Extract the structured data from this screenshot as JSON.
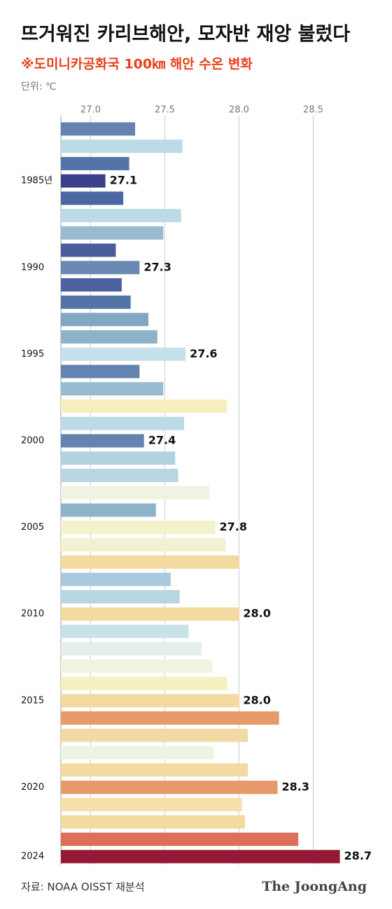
{
  "chart_data": {
    "type": "barh",
    "title": "뜨거워진 카리브해안, 모자반 재앙 불렀다",
    "subtitle": "※도미니카공화국 100㎞ 해안 수온 변화",
    "unit_label": "단위: ℃",
    "source": "자료: NOAA OISST 재분석",
    "brand": "The JoongAng",
    "categories": [
      null,
      null,
      null,
      "1985년",
      null,
      null,
      null,
      null,
      "1990",
      null,
      null,
      null,
      null,
      "1995",
      null,
      null,
      null,
      null,
      "2000",
      null,
      null,
      null,
      null,
      "2005",
      null,
      null,
      null,
      null,
      "2010",
      null,
      null,
      null,
      null,
      "2015",
      null,
      null,
      null,
      null,
      "2020",
      null,
      null,
      null,
      "2024"
    ],
    "values": [
      27.3,
      27.62,
      27.26,
      27.1,
      27.22,
      27.61,
      27.49,
      27.17,
      27.33,
      27.21,
      27.27,
      27.39,
      27.45,
      27.64,
      27.33,
      27.49,
      27.92,
      27.63,
      27.36,
      27.57,
      27.59,
      27.8,
      27.44,
      27.84,
      27.91,
      28.0,
      27.54,
      27.6,
      28.0,
      27.66,
      27.75,
      27.82,
      27.92,
      28.0,
      28.27,
      28.06,
      27.83,
      28.06,
      28.26,
      28.02,
      28.04,
      28.4,
      28.68
    ],
    "value_labels": [
      null,
      null,
      null,
      "27.1",
      null,
      null,
      null,
      null,
      "27.3",
      null,
      null,
      null,
      null,
      "27.6",
      null,
      null,
      null,
      null,
      "27.4",
      null,
      null,
      null,
      null,
      "27.8",
      null,
      null,
      null,
      null,
      "28.0",
      null,
      null,
      null,
      null,
      "28.0",
      null,
      null,
      null,
      null,
      "28.3",
      null,
      null,
      null,
      "28.7"
    ],
    "colors": [
      "#6384b0",
      "#bcdbe6",
      "#5474a8",
      "#3b3f8a",
      "#4c66a2",
      "#bcdbe6",
      "#97bbd0",
      "#4a5c9c",
      "#6989b2",
      "#4c62a0",
      "#5474a8",
      "#82a7c4",
      "#8eb2ca",
      "#c4e0ea",
      "#6384b0",
      "#97bbd0",
      "#f6f0c0",
      "#bcdbe6",
      "#6384b0",
      "#b2d2e0",
      "#b8d6e2",
      "#eef3e2",
      "#8eb2ca",
      "#f3f2cc",
      "#f2f2d2",
      "#f2daa0",
      "#a8cadc",
      "#b8d6e2",
      "#f2daa0",
      "#c8e2ea",
      "#e6efea",
      "#eef3e2",
      "#f6f0c2",
      "#f2daa0",
      "#e8996a",
      "#f2daa6",
      "#eef3e2",
      "#f2daa0",
      "#e8996a",
      "#f4e0aa",
      "#f2daa0",
      "#dc7058",
      "#951834"
    ],
    "xlim": [
      26.8,
      28.8
    ],
    "xticks": [
      {
        "value": 27,
        "label": "27.0"
      },
      27.5,
      {
        "value": 28,
        "label": "28.0"
      },
      28.5
    ],
    "grid": true
  }
}
